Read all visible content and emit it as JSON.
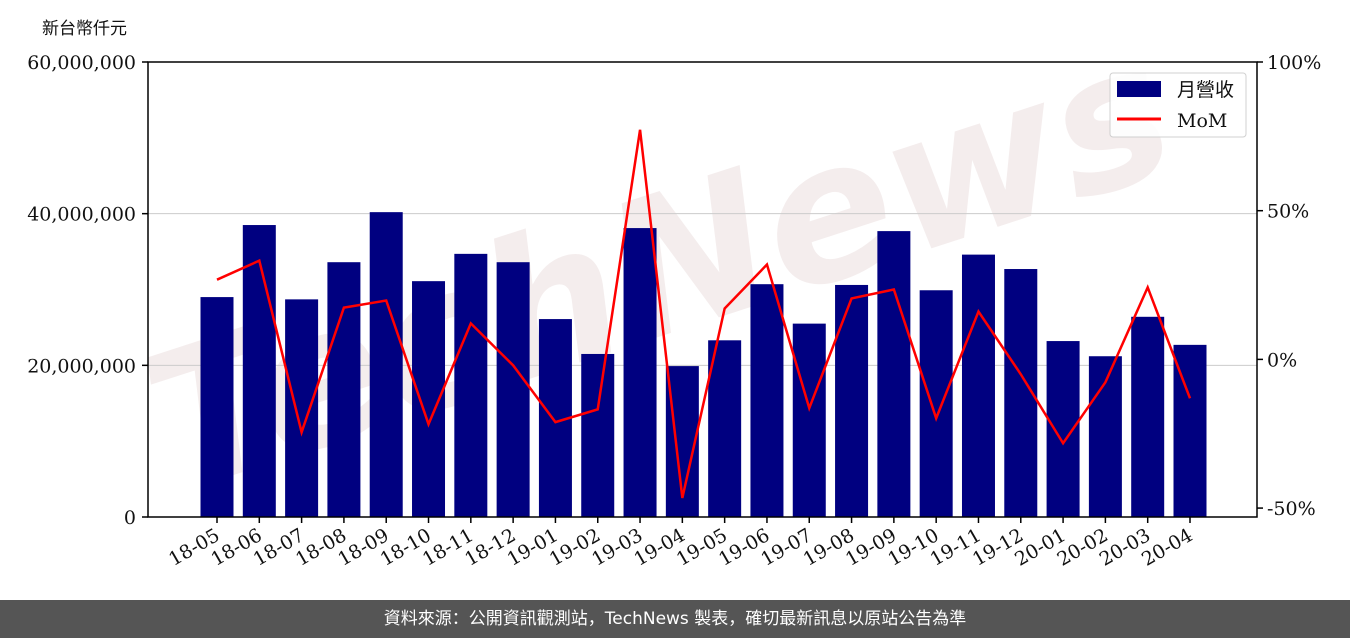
{
  "chart_data": {
    "type": "bar+line",
    "y_unit_label": "新台幣仟元",
    "categories": [
      "18-05",
      "18-06",
      "18-07",
      "18-08",
      "18-09",
      "18-10",
      "18-11",
      "18-12",
      "19-01",
      "19-02",
      "19-03",
      "19-04",
      "19-05",
      "19-06",
      "19-07",
      "19-08",
      "19-09",
      "19-10",
      "19-11",
      "19-12",
      "20-01",
      "20-02",
      "20-03",
      "20-04"
    ],
    "series": [
      {
        "name": "月營收",
        "type": "bar",
        "axis": "left",
        "color": "#000080",
        "values": [
          29000000,
          38500000,
          28700000,
          33600000,
          40200000,
          31100000,
          34700000,
          33600000,
          26100000,
          21500000,
          38100000,
          19900000,
          23300000,
          30700000,
          25500000,
          30600000,
          37700000,
          29900000,
          34600000,
          32700000,
          23200000,
          21200000,
          26400000,
          22700000
        ]
      },
      {
        "name": "MoM",
        "type": "line",
        "axis": "right",
        "color": "#ff0000",
        "values": [
          26.8,
          33.2,
          -24.5,
          17.4,
          19.8,
          -21.8,
          12.1,
          -2.0,
          -21.1,
          -16.8,
          77.2,
          -46.6,
          17.1,
          31.9,
          -16.4,
          20.5,
          23.5,
          -19.8,
          16.1,
          -5.0,
          -28.2,
          -7.7,
          24.2,
          -13.1
        ]
      }
    ],
    "left_axis": {
      "ylim": [
        0,
        60000000
      ],
      "ticks": [
        0,
        20000000,
        40000000,
        60000000
      ],
      "tick_labels": [
        "0",
        "20,000,000",
        "40,000,000",
        "60,000,000"
      ]
    },
    "right_axis": {
      "ylim": [
        -53,
        100
      ],
      "ticks": [
        -50,
        0,
        50,
        100
      ],
      "tick_labels": [
        "-50%",
        "0%",
        "50%",
        "100%"
      ]
    },
    "grid": "horizontal",
    "legend": "top-right"
  },
  "watermark": "TechNews",
  "footer": "資料來源：公開資訊觀測站，TechNews 製表，確切最新訊息以原站公告為準"
}
